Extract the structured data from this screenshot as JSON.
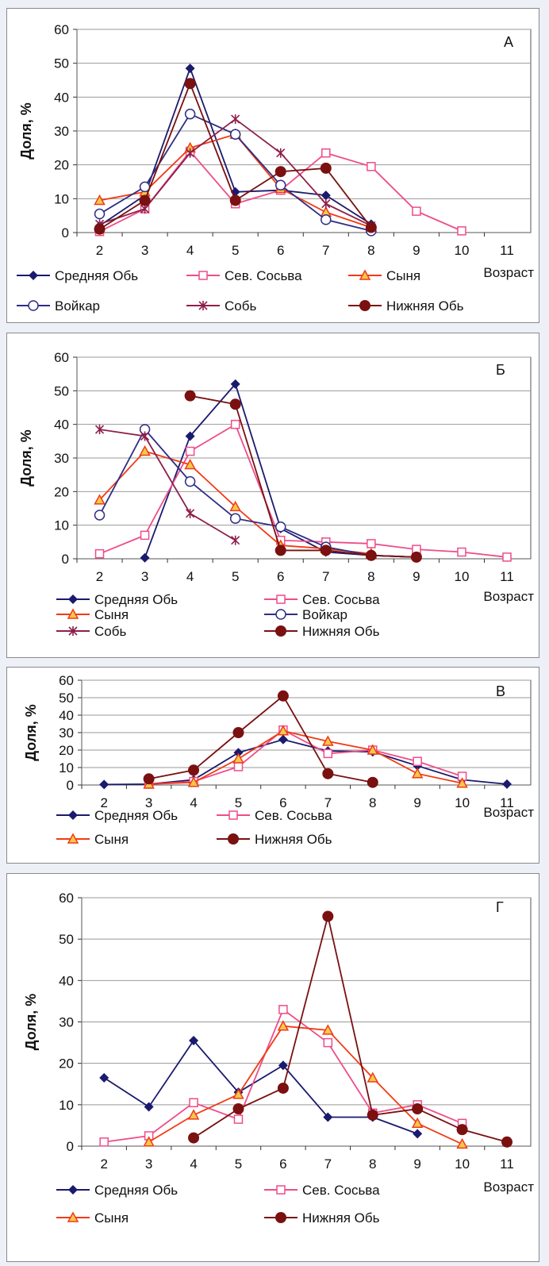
{
  "colors": {
    "srednyaya_ob": "#1a1a6e",
    "sev_sosva": "#ee4d8a",
    "synya": "#f23a16",
    "voykar": "#2e2e84",
    "sob": "#8e1f4a",
    "nizhnyaya_ob": "#7a1010"
  },
  "chart_data": [
    {
      "type": "line",
      "panel_label": "А",
      "ylabel": "Доля, %",
      "xlabel": "Возраст",
      "x": [
        2,
        3,
        4,
        5,
        6,
        7,
        8,
        9,
        10,
        11
      ],
      "xlim": [
        2,
        11
      ],
      "ylim": [
        0,
        60
      ],
      "yticks": [
        0,
        10,
        20,
        30,
        40,
        50,
        60
      ],
      "grid": true,
      "legend_position": "bottom",
      "series": [
        {
          "name": "Средняя Обь",
          "key": "srednyaya_ob",
          "marker": "diamond",
          "points": [
            [
              2,
              2
            ],
            [
              3,
              11
            ],
            [
              4,
              48.5
            ],
            [
              5,
              12
            ],
            [
              6,
              12.5
            ],
            [
              7,
              11
            ],
            [
              8,
              2.5
            ]
          ]
        },
        {
          "name": "Сев. Сосьва",
          "key": "sev_sosva",
          "marker": "square",
          "points": [
            [
              2,
              0.3
            ],
            [
              3,
              7
            ],
            [
              4,
              24
            ],
            [
              5,
              8.5
            ],
            [
              6,
              12.5
            ],
            [
              7,
              23.5
            ],
            [
              8,
              19.5
            ],
            [
              9,
              6.3
            ],
            [
              10,
              0.5
            ]
          ]
        },
        {
          "name": "Сыня",
          "key": "synya",
          "marker": "triangle",
          "points": [
            [
              2,
              9.5
            ],
            [
              3,
              12
            ],
            [
              4,
              25
            ],
            [
              5,
              29
            ],
            [
              6,
              13
            ],
            [
              7,
              6
            ],
            [
              8,
              1.5
            ]
          ]
        },
        {
          "name": "Войкар",
          "key": "voykar",
          "marker": "circle",
          "points": [
            [
              2,
              5.5
            ],
            [
              3,
              13.5
            ],
            [
              4,
              35
            ],
            [
              5,
              29
            ],
            [
              6,
              14
            ],
            [
              7,
              3.8
            ],
            [
              8,
              0.5
            ]
          ]
        },
        {
          "name": "Собь",
          "key": "sob",
          "marker": "star",
          "points": [
            [
              2,
              2.5
            ],
            [
              3,
              7
            ],
            [
              4,
              23.5
            ],
            [
              5,
              33.5
            ],
            [
              6,
              23.5
            ],
            [
              7,
              8.5
            ],
            [
              8,
              2
            ]
          ]
        },
        {
          "name": "Нижняя Обь",
          "key": "nizhnyaya_ob",
          "marker": "dot",
          "points": [
            [
              2,
              1
            ],
            [
              3,
              9.5
            ],
            [
              4,
              44
            ],
            [
              5,
              9.5
            ],
            [
              6,
              18
            ],
            [
              7,
              19
            ],
            [
              8,
              1.5
            ]
          ]
        }
      ]
    },
    {
      "type": "line",
      "panel_label": "Б",
      "ylabel": "Доля, %",
      "xlabel": "Возраст",
      "x": [
        2,
        3,
        4,
        5,
        6,
        7,
        8,
        9,
        10,
        11
      ],
      "xlim": [
        2,
        11
      ],
      "ylim": [
        0,
        60
      ],
      "yticks": [
        0,
        10,
        20,
        30,
        40,
        50,
        60
      ],
      "grid": true,
      "legend_position": "bottom",
      "series": [
        {
          "name": "Средняя Обь",
          "key": "srednyaya_ob",
          "marker": "diamond",
          "points": [
            [
              3,
              0.3
            ],
            [
              4,
              36.5
            ],
            [
              5,
              52
            ],
            [
              6,
              9
            ],
            [
              7,
              2
            ],
            [
              8,
              1
            ],
            [
              9,
              0.5
            ]
          ]
        },
        {
          "name": "Сев. Сосьва",
          "key": "sev_sosva",
          "marker": "square",
          "points": [
            [
              2,
              1.5
            ],
            [
              3,
              7
            ],
            [
              4,
              32
            ],
            [
              5,
              40
            ],
            [
              6,
              5.5
            ],
            [
              7,
              5
            ],
            [
              8,
              4.5
            ],
            [
              9,
              2.8
            ],
            [
              10,
              2
            ],
            [
              11,
              0.5
            ]
          ]
        },
        {
          "name": "Сыня",
          "key": "synya",
          "marker": "triangle",
          "points": [
            [
              2,
              17.5
            ],
            [
              3,
              32
            ],
            [
              4,
              28
            ],
            [
              5,
              15.5
            ],
            [
              6,
              4
            ],
            [
              7,
              3
            ],
            [
              8,
              1.5
            ]
          ]
        },
        {
          "name": "Войкар",
          "key": "voykar",
          "marker": "circle",
          "points": [
            [
              2,
              13
            ],
            [
              3,
              38.5
            ],
            [
              4,
              23
            ],
            [
              5,
              12
            ],
            [
              6,
              9.5
            ],
            [
              7,
              3.5
            ],
            [
              8,
              1
            ],
            [
              9,
              0.5
            ]
          ]
        },
        {
          "name": "Собь",
          "key": "sob",
          "marker": "star",
          "points": [
            [
              2,
              38.5
            ],
            [
              3,
              36.5
            ],
            [
              4,
              13.5
            ],
            [
              5,
              5.5
            ]
          ]
        },
        {
          "name": "Нижняя Обь",
          "key": "nizhnyaya_ob",
          "marker": "dot",
          "points": [
            [
              4,
              48.5
            ],
            [
              5,
              46
            ],
            [
              6,
              2.5
            ],
            [
              7,
              2.5
            ],
            [
              8,
              1
            ],
            [
              9,
              0.5
            ]
          ]
        }
      ]
    },
    {
      "type": "line",
      "panel_label": "В",
      "ylabel": "Доля, %",
      "xlabel": "Возраст",
      "x": [
        2,
        3,
        4,
        5,
        6,
        7,
        8,
        9,
        10,
        11
      ],
      "xlim": [
        2,
        11
      ],
      "ylim": [
        0,
        60
      ],
      "yticks": [
        0,
        10,
        20,
        30,
        40,
        50,
        60
      ],
      "grid": true,
      "legend_position": "bottom",
      "series": [
        {
          "name": "Средняя Обь",
          "key": "srednyaya_ob",
          "marker": "diamond",
          "points": [
            [
              2,
              0.3
            ],
            [
              3,
              0.5
            ],
            [
              4,
              3
            ],
            [
              5,
              18.5
            ],
            [
              6,
              26
            ],
            [
              7,
              19.5
            ],
            [
              8,
              19
            ],
            [
              9,
              11
            ],
            [
              10,
              3
            ],
            [
              11,
              0.5
            ]
          ]
        },
        {
          "name": "Сев. Сосьва",
          "key": "sev_sosva",
          "marker": "square",
          "points": [
            [
              3,
              0.5
            ],
            [
              4,
              2
            ],
            [
              5,
              10.5
            ],
            [
              6,
              31.5
            ],
            [
              7,
              18
            ],
            [
              8,
              20
            ],
            [
              9,
              13.5
            ],
            [
              10,
              5
            ]
          ]
        },
        {
          "name": "Сыня",
          "key": "synya",
          "marker": "triangle",
          "points": [
            [
              3,
              0.5
            ],
            [
              4,
              1.5
            ],
            [
              5,
              15
            ],
            [
              6,
              31
            ],
            [
              7,
              25
            ],
            [
              8,
              20
            ],
            [
              9,
              6.5
            ],
            [
              10,
              1
            ]
          ]
        },
        {
          "name": "Нижняя Обь",
          "key": "nizhnyaya_ob",
          "marker": "dot",
          "points": [
            [
              3,
              3.5
            ],
            [
              4,
              8.5
            ],
            [
              5,
              30
            ],
            [
              6,
              51
            ],
            [
              7,
              6.5
            ],
            [
              8,
              1.5
            ]
          ]
        }
      ]
    },
    {
      "type": "line",
      "panel_label": "Г",
      "ylabel": "Доля, %",
      "xlabel": "Возраст",
      "x": [
        2,
        3,
        4,
        5,
        6,
        7,
        8,
        9,
        10,
        11
      ],
      "xlim": [
        2,
        11
      ],
      "ylim": [
        0,
        60
      ],
      "yticks": [
        0,
        10,
        20,
        30,
        40,
        50,
        60
      ],
      "grid": true,
      "legend_position": "bottom",
      "series": [
        {
          "name": "Средняя Обь",
          "key": "srednyaya_ob",
          "marker": "diamond",
          "points": [
            [
              2,
              16.5
            ],
            [
              3,
              9.5
            ],
            [
              4,
              25.5
            ],
            [
              5,
              13
            ],
            [
              6,
              19.5
            ],
            [
              7,
              7
            ],
            [
              8,
              7
            ],
            [
              9,
              3
            ]
          ]
        },
        {
          "name": "Сев. Сосьва",
          "key": "sev_sosva",
          "marker": "square",
          "points": [
            [
              2,
              1
            ],
            [
              3,
              2.5
            ],
            [
              4,
              10.5
            ],
            [
              5,
              6.5
            ],
            [
              6,
              33
            ],
            [
              7,
              25
            ],
            [
              8,
              8
            ],
            [
              9,
              10
            ],
            [
              10,
              5.5
            ]
          ]
        },
        {
          "name": "Сыня",
          "key": "synya",
          "marker": "triangle",
          "points": [
            [
              3,
              1
            ],
            [
              4,
              7.5
            ],
            [
              5,
              12.5
            ],
            [
              6,
              29
            ],
            [
              7,
              28
            ],
            [
              8,
              16.5
            ],
            [
              9,
              5.5
            ],
            [
              10,
              0.5
            ]
          ]
        },
        {
          "name": "Нижняя Обь",
          "key": "nizhnyaya_ob",
          "marker": "dot",
          "points": [
            [
              4,
              2
            ],
            [
              5,
              9
            ],
            [
              6,
              14
            ],
            [
              7,
              55.5
            ],
            [
              8,
              7.5
            ],
            [
              9,
              9
            ],
            [
              10,
              4
            ],
            [
              11,
              1
            ]
          ]
        }
      ]
    }
  ]
}
